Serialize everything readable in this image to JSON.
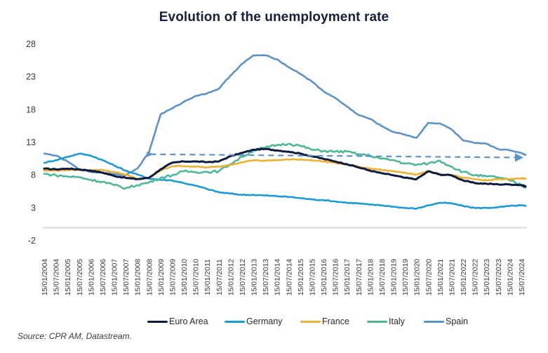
{
  "chart_data": {
    "type": "line",
    "title": "Evolution of the unemployment  rate",
    "xlabel": "",
    "ylabel": "",
    "ylim": [
      -2,
      28
    ],
    "yticks": [
      -2,
      3,
      8,
      13,
      18,
      23,
      28
    ],
    "grid": false,
    "legend_position": "bottom",
    "x": [
      "15/01/2004",
      "15/07/2004",
      "15/01/2005",
      "15/07/2005",
      "15/01/2006",
      "15/07/2006",
      "15/01/2007",
      "15/07/2007",
      "15/01/2008",
      "15/07/2008",
      "15/01/2009",
      "15/07/2009",
      "15/01/2010",
      "15/07/2010",
      "15/01/2011",
      "15/07/2011",
      "15/01/2012",
      "15/07/2012",
      "15/01/2013",
      "15/07/2013",
      "15/01/2014",
      "15/07/2014",
      "15/01/2015",
      "15/07/2015",
      "15/01/2016",
      "15/07/2016",
      "15/01/2017",
      "15/07/2017",
      "15/01/2018",
      "15/07/2018",
      "15/01/2019",
      "15/07/2019",
      "15/01/2020",
      "15/07/2020",
      "15/01/2021",
      "15/07/2021",
      "15/01/2022",
      "15/07/2022",
      "15/01/2023",
      "15/07/2023",
      "15/01/2024",
      "15/07/2024"
    ],
    "series": [
      {
        "name": "Euro Area",
        "color": "#0d1b3e",
        "values": [
          9.0,
          8.9,
          9.0,
          8.9,
          8.7,
          8.4,
          7.9,
          7.6,
          7.4,
          7.6,
          8.9,
          9.9,
          10.1,
          10.1,
          10.0,
          10.1,
          10.9,
          11.4,
          11.9,
          12.0,
          11.8,
          11.6,
          11.3,
          10.9,
          10.5,
          10.1,
          9.7,
          9.2,
          8.7,
          8.3,
          8.0,
          7.6,
          7.4,
          8.6,
          8.1,
          8.0,
          7.2,
          6.8,
          6.7,
          6.6,
          6.6,
          6.5
        ],
        "end_value": 6.3
      },
      {
        "name": "Germany",
        "color": "#1a9bd7",
        "values": [
          9.9,
          10.3,
          10.8,
          11.3,
          11.0,
          10.3,
          9.5,
          8.7,
          8.1,
          7.5,
          7.3,
          7.2,
          6.8,
          6.4,
          5.9,
          5.4,
          5.2,
          5.0,
          5.0,
          4.9,
          4.8,
          4.7,
          4.5,
          4.3,
          4.2,
          4.0,
          3.8,
          3.7,
          3.5,
          3.4,
          3.2,
          3.0,
          2.9,
          3.4,
          3.8,
          3.7,
          3.3,
          3.0,
          3.0,
          3.1,
          3.3,
          3.4
        ],
        "end_value": 3.3
      },
      {
        "name": "France",
        "color": "#f0b030",
        "values": [
          8.7,
          8.7,
          8.8,
          8.8,
          8.8,
          8.8,
          8.5,
          8.1,
          7.4,
          7.6,
          8.7,
          9.4,
          9.4,
          9.3,
          9.2,
          9.3,
          9.6,
          10.0,
          10.3,
          10.2,
          10.3,
          10.4,
          10.4,
          10.3,
          10.1,
          9.9,
          9.6,
          9.3,
          9.0,
          8.8,
          8.6,
          8.4,
          8.1,
          8.6,
          8.1,
          8.0,
          7.6,
          7.4,
          7.2,
          7.4,
          7.4,
          7.5
        ],
        "end_value": 7.5
      },
      {
        "name": "Italy",
        "color": "#4db896",
        "values": [
          8.2,
          8.0,
          7.8,
          7.7,
          7.3,
          7.0,
          6.5,
          6.0,
          6.5,
          6.9,
          7.6,
          8.0,
          8.6,
          8.5,
          8.5,
          8.6,
          9.7,
          10.8,
          11.8,
          12.2,
          12.6,
          12.8,
          12.5,
          11.9,
          11.7,
          11.6,
          11.6,
          11.2,
          11.0,
          10.5,
          10.3,
          9.8,
          9.6,
          9.8,
          10.2,
          9.3,
          8.5,
          8.0,
          7.8,
          7.7,
          7.2,
          6.5
        ],
        "end_value": 6.1
      },
      {
        "name": "Spain",
        "color": "#5b93c8",
        "values": [
          11.3,
          11.0,
          10.1,
          8.9,
          8.5,
          8.4,
          8.2,
          8.0,
          9.0,
          11.5,
          17.3,
          18.2,
          19.2,
          20.1,
          20.5,
          21.2,
          23.2,
          25.0,
          26.3,
          26.3,
          25.7,
          24.5,
          23.5,
          22.3,
          20.8,
          19.8,
          18.5,
          17.2,
          16.6,
          15.5,
          14.6,
          14.2,
          13.7,
          16.0,
          15.9,
          15.0,
          13.3,
          12.9,
          12.8,
          12.0,
          11.8,
          11.4
        ],
        "end_value": 11.1
      }
    ],
    "annotations": [
      {
        "type": "dashed-arrow",
        "label": "",
        "from_x": "15/07/2008",
        "to_x": "15/07/2024",
        "from_value": 11.2,
        "to_value": 10.7,
        "color": "#5b93c8"
      }
    ],
    "source": "Source: CPR AM, Datastream."
  }
}
